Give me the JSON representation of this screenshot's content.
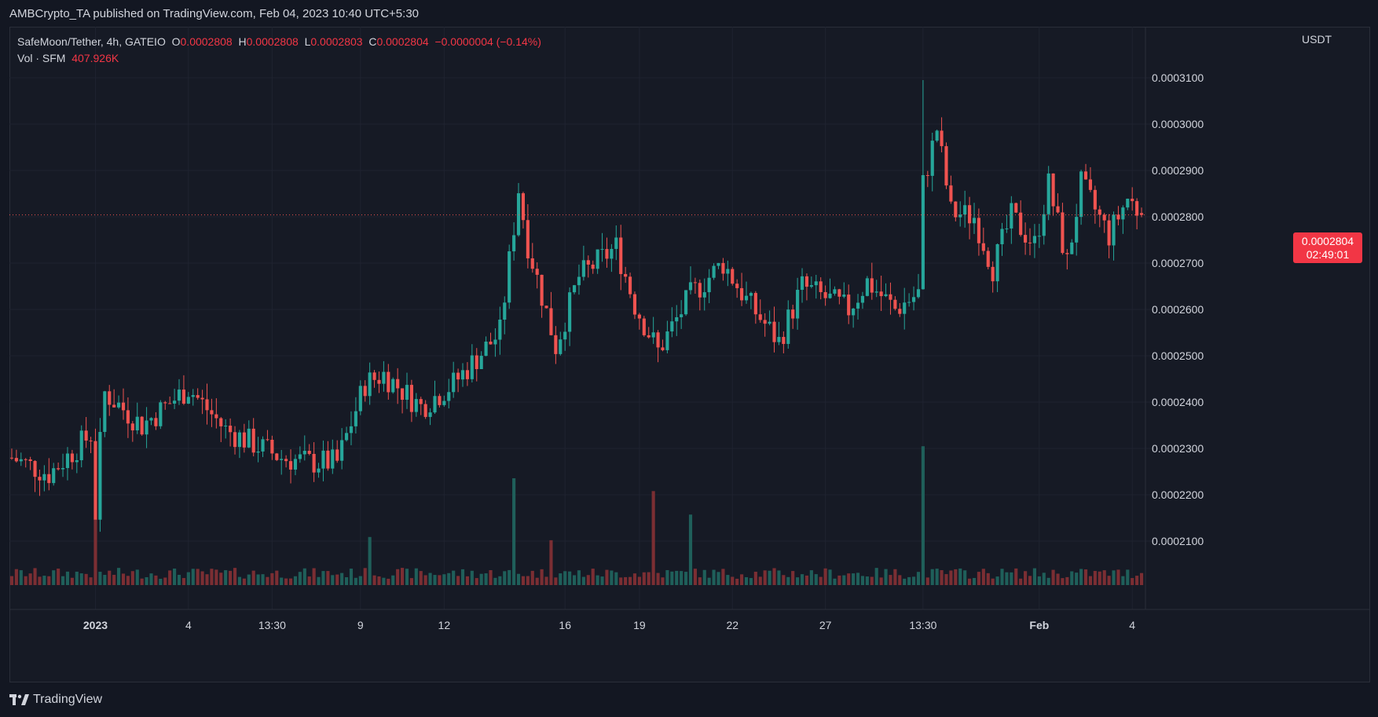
{
  "publisher": "AMBCrypto_TA published on TradingView.com, Feb 04, 2023 10:40 UTC+5:30",
  "legend": {
    "symbol": "SafeMoon/Tether, 4h, GATEIO",
    "o_label": "O",
    "o": "0.0002808",
    "h_label": "H",
    "h": "0.0002808",
    "l_label": "L",
    "l": "0.0002803",
    "c_label": "C",
    "c": "0.0002804",
    "change": "−0.0000004 (−0.14%)",
    "vol_label": "Vol · SFM",
    "vol": "407.926K"
  },
  "price_axis_unit": "USDT",
  "last_price": {
    "value": "0.0002804",
    "countdown": "02:49:01"
  },
  "brand": "TradingView",
  "colors": {
    "up": "#26a69a",
    "down": "#ef5350",
    "up_vol": "#1f5f5a",
    "down_vol": "#7b2e33",
    "grid": "#1f2330",
    "text": "#d1d4dc"
  },
  "chart_data": {
    "type": "candlestick",
    "y_ticks": [
      "0.0002100",
      "0.0002200",
      "0.0002300",
      "0.0002400",
      "0.0002500",
      "0.0002600",
      "0.0002700",
      "0.0002800",
      "0.0002900",
      "0.0003000",
      "0.0003100"
    ],
    "ylim": [
      0.0002,
      0.000316
    ],
    "x_ticks": [
      "2023",
      "4",
      "13:30",
      "9",
      "12",
      "16",
      "19",
      "22",
      "27",
      "13:30",
      "Feb",
      "4"
    ],
    "x_tick_index": [
      18,
      38,
      56,
      75,
      93,
      119,
      135,
      155,
      175,
      196,
      221,
      241
    ],
    "bars": 244,
    "key_points": [
      {
        "i": 0,
        "close": 0.000228
      },
      {
        "i": 8,
        "close": 0.0002245
      },
      {
        "i": 17,
        "close": 0.000233
      },
      {
        "i": 18,
        "low": 0.0002155,
        "close": 0.000216
      },
      {
        "i": 19,
        "close": 0.000231
      },
      {
        "i": 20,
        "close": 0.000242
      },
      {
        "i": 28,
        "close": 0.000235
      },
      {
        "i": 38,
        "close": 0.000243
      },
      {
        "i": 46,
        "close": 0.000234
      },
      {
        "i": 58,
        "close": 0.000228
      },
      {
        "i": 64,
        "close": 0.000227
      },
      {
        "i": 70,
        "close": 0.000227
      },
      {
        "i": 76,
        "close": 0.000244
      },
      {
        "i": 80,
        "close": 0.000246
      },
      {
        "i": 88,
        "close": 0.000239
      },
      {
        "i": 95,
        "close": 0.000244
      },
      {
        "i": 105,
        "close": 0.000255
      },
      {
        "i": 108,
        "close": 0.000278
      },
      {
        "i": 109,
        "close": 0.000286
      },
      {
        "i": 111,
        "close": 0.000274
      },
      {
        "i": 117,
        "close": 0.000252
      },
      {
        "i": 122,
        "close": 0.000267
      },
      {
        "i": 130,
        "close": 0.0002735
      },
      {
        "i": 134,
        "close": 0.000261
      },
      {
        "i": 139,
        "close": 0.000251
      },
      {
        "i": 146,
        "close": 0.000263
      },
      {
        "i": 153,
        "close": 0.00027
      },
      {
        "i": 158,
        "close": 0.000262
      },
      {
        "i": 165,
        "close": 0.000253
      },
      {
        "i": 170,
        "close": 0.000265
      },
      {
        "i": 180,
        "close": 0.00026
      },
      {
        "i": 184,
        "close": 0.000266
      },
      {
        "i": 190,
        "close": 0.00026
      },
      {
        "i": 195,
        "close": 0.0002635
      },
      {
        "i": 196,
        "high": 0.0003095,
        "close": 0.000287
      },
      {
        "i": 199,
        "close": 0.000299
      },
      {
        "i": 202,
        "close": 0.000281
      },
      {
        "i": 207,
        "close": 0.00028
      },
      {
        "i": 211,
        "close": 0.000269
      },
      {
        "i": 215,
        "close": 0.00028
      },
      {
        "i": 220,
        "close": 0.000274
      },
      {
        "i": 223,
        "close": 0.000287
      },
      {
        "i": 227,
        "close": 0.00027
      },
      {
        "i": 230,
        "close": 0.000287
      },
      {
        "i": 236,
        "close": 0.000276
      },
      {
        "i": 240,
        "close": 0.000284
      },
      {
        "i": 243,
        "close": 0.0002804
      }
    ],
    "volume_spikes": [
      {
        "i": 18,
        "ratio": 0.9,
        "dir": "down"
      },
      {
        "i": 108,
        "ratio": 1.0,
        "dir": "up"
      },
      {
        "i": 138,
        "ratio": 0.88,
        "dir": "down"
      },
      {
        "i": 146,
        "ratio": 0.66,
        "dir": "up"
      },
      {
        "i": 196,
        "ratio": 1.3,
        "dir": "up"
      },
      {
        "i": 77,
        "ratio": 0.45,
        "dir": "up"
      },
      {
        "i": 116,
        "ratio": 0.42,
        "dir": "down"
      }
    ]
  }
}
